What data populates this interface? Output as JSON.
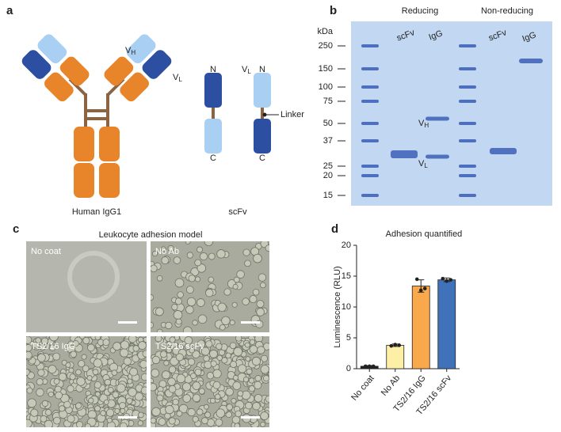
{
  "figure": {
    "panel_a": {
      "letter": "a",
      "igg_caption": "Human IgG1",
      "scfv_caption": "scFv",
      "vh": {
        "main": "V",
        "sub": "H"
      },
      "vl": {
        "main": "V",
        "sub": "L"
      },
      "scfv_vl": {
        "main": "V",
        "sub": "L"
      },
      "n_left": "N",
      "c_left": "C",
      "n_right": "N",
      "c_right": "C",
      "linker": "Linker"
    },
    "panel_b": {
      "letter": "b",
      "unit": "kDa",
      "markers": [
        250,
        150,
        100,
        75,
        50,
        37,
        25,
        20,
        15
      ],
      "groups": [
        "Reducing",
        "Non-reducing"
      ],
      "lanes": [
        "scFv",
        "IgG",
        "scFv",
        "IgG"
      ],
      "vh": {
        "main": "V",
        "sub": "H"
      },
      "vl": {
        "main": "V",
        "sub": "L"
      }
    },
    "panel_c": {
      "letter": "c",
      "title": "Leukocyte adhesion model",
      "images": [
        "No coat",
        "No Ab",
        "TS2/16 IgG",
        "TS2/16 scFv"
      ]
    },
    "panel_d": {
      "letter": "d"
    }
  },
  "chart_data": {
    "type": "bar",
    "title": "Adhesion quantified",
    "y_label": "Luminescence (RLU)",
    "categories": [
      "No coat",
      "No Ab",
      "TS2/16 IgG",
      "TS2/16 scFv"
    ],
    "values": [
      0.4,
      3.8,
      13.4,
      14.4
    ],
    "errors": [
      0.1,
      0.2,
      1.0,
      0.3
    ],
    "points": [
      [
        0.4,
        0.4,
        0.4
      ],
      [
        3.7,
        3.9,
        3.8
      ],
      [
        14.5,
        12.7,
        13.0
      ],
      [
        14.6,
        14.2,
        14.4
      ]
    ],
    "colors": [
      "#222222",
      "#fdf0a6",
      "#f9a94b",
      "#3f72b9"
    ],
    "ylim": [
      0,
      20
    ],
    "yticks": [
      0,
      5,
      10,
      15,
      20
    ]
  }
}
